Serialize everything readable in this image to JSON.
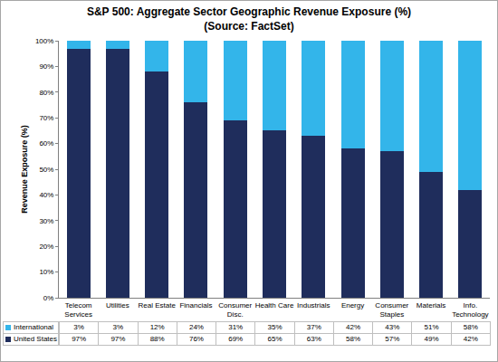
{
  "chart_data": {
    "type": "bar",
    "stacked": true,
    "title": "S&P 500: Aggregate Sector Geographic Revenue Exposure (%)",
    "subtitle": "(Source: FactSet)",
    "y_label": "Revenue Exposure (%)",
    "categories": [
      "Telecom Services",
      "Utilities",
      "Real Estate",
      "Financials",
      "Consumer Disc.",
      "Health Care",
      "Industrials",
      "Energy",
      "Consumer Staples",
      "Materials",
      "Info. Technology"
    ],
    "series": [
      {
        "name": "United States",
        "color": "#1f2d5c",
        "values": [
          97,
          97,
          88,
          76,
          69,
          65,
          63,
          58,
          57,
          49,
          42
        ],
        "value_labels": [
          "97%",
          "97%",
          "88%",
          "76%",
          "69%",
          "65%",
          "63%",
          "58%",
          "57%",
          "49%",
          "42%"
        ]
      },
      {
        "name": "International",
        "color": "#33b5ea",
        "values": [
          3,
          3,
          12,
          24,
          31,
          35,
          37,
          42,
          43,
          51,
          58
        ],
        "value_labels": [
          "3%",
          "3%",
          "12%",
          "24%",
          "31%",
          "35%",
          "37%",
          "42%",
          "43%",
          "51%",
          "58%"
        ]
      }
    ],
    "ylim": [
      0,
      100
    ],
    "yticks": [
      {
        "value": 0,
        "label": "0%"
      },
      {
        "value": 10,
        "label": "10%"
      },
      {
        "value": 20,
        "label": "20%"
      },
      {
        "value": 30,
        "label": "30%"
      },
      {
        "value": 40,
        "label": "40%"
      },
      {
        "value": 50,
        "label": "50%"
      },
      {
        "value": 60,
        "label": "60%"
      },
      {
        "value": 70,
        "label": "70%"
      },
      {
        "value": 80,
        "label": "80%"
      },
      {
        "value": 90,
        "label": "90%"
      },
      {
        "value": 100,
        "label": "100%"
      }
    ],
    "grid": false
  }
}
